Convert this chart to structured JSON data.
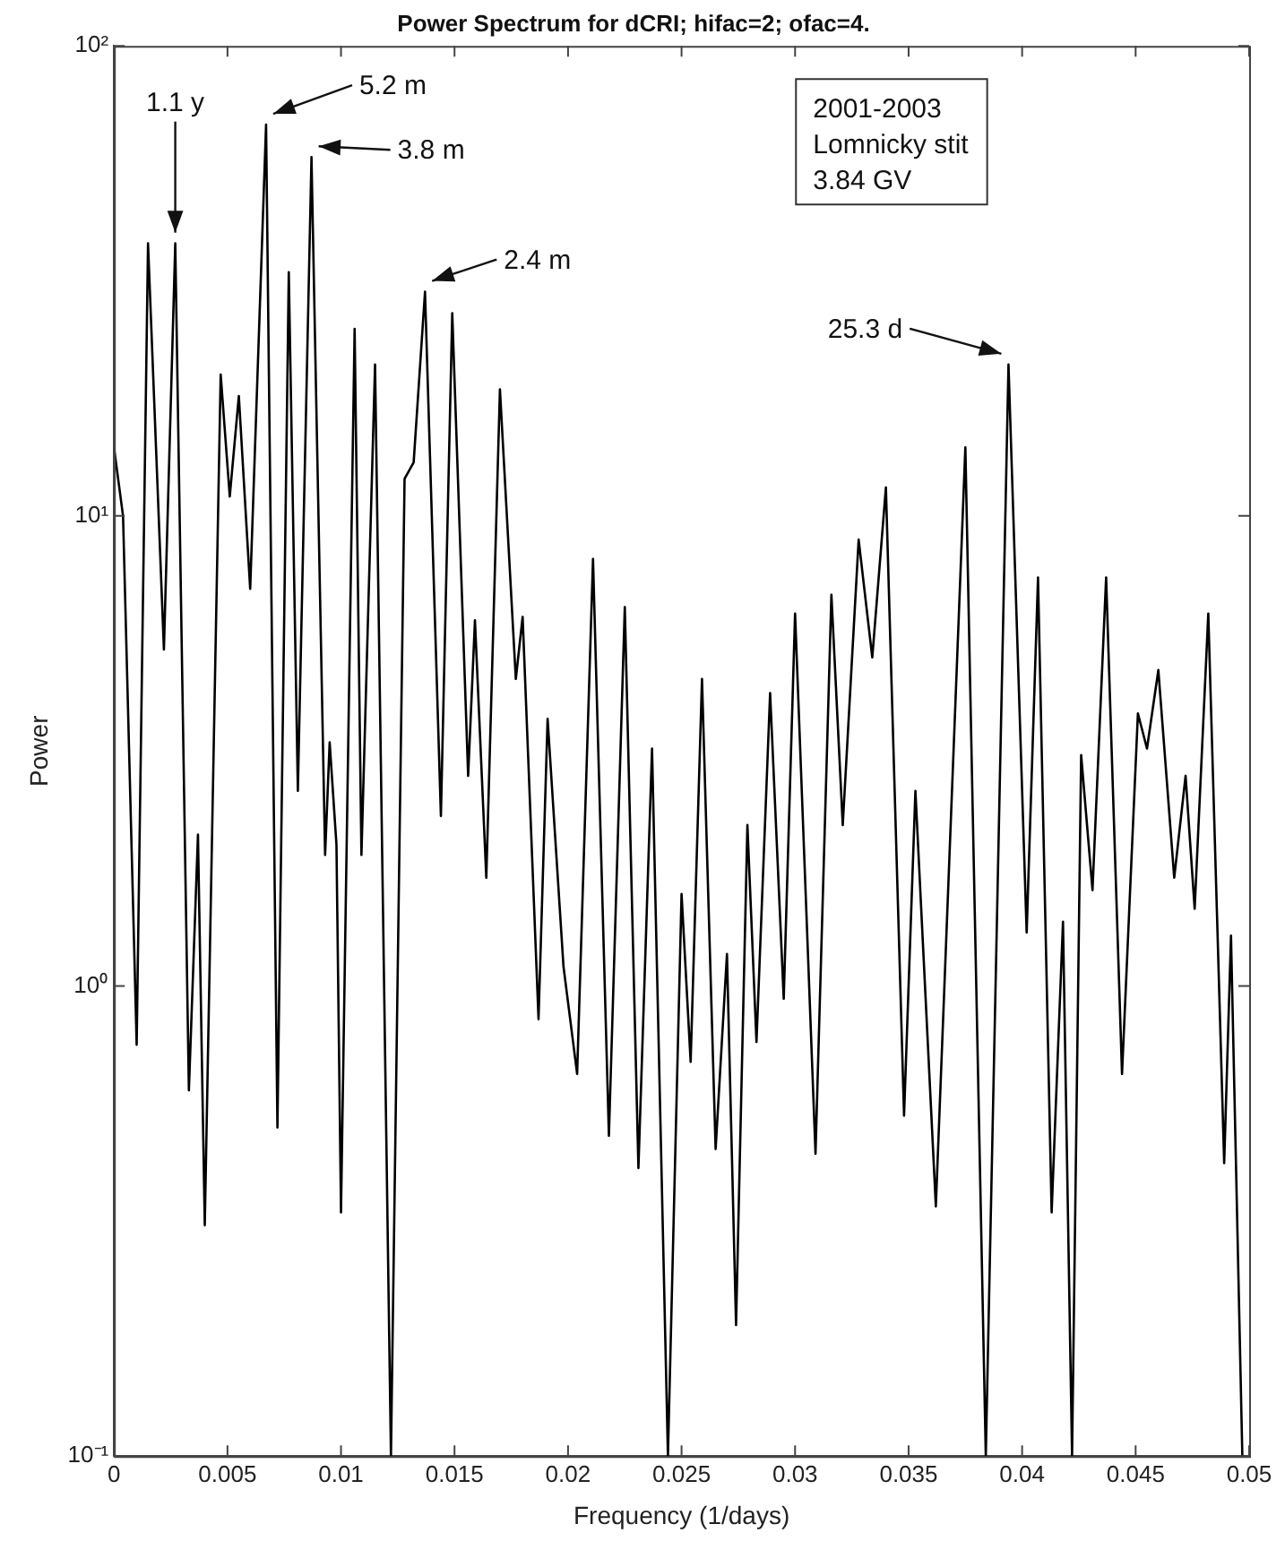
{
  "chart_data": {
    "type": "line",
    "title": "Power Spectrum for dCRI; hifac=2; ofac=4.",
    "xlabel": "Frequency (1/days)",
    "ylabel": "Power",
    "log": "y",
    "grid": false,
    "legend": false,
    "marker": "none",
    "line_style": "solid",
    "xlim": [
      0,
      0.05
    ],
    "xticks": [
      0,
      0.005,
      0.01,
      0.015,
      0.02,
      0.025,
      0.03,
      0.035,
      0.04,
      0.045,
      0.05
    ],
    "ylim": [
      0.1,
      100
    ],
    "yticks": [
      {
        "value": 0.1,
        "label": "10⁻¹"
      },
      {
        "value": 1,
        "label": "10⁰"
      },
      {
        "value": 10,
        "label": "10¹"
      },
      {
        "value": 100,
        "label": "10²"
      }
    ],
    "series": [
      {
        "color": "#000000",
        "x": [
          0,
          0.0004,
          0.001,
          0.0015,
          0.0022,
          0.0027,
          0.0033,
          0.0037,
          0.004,
          0.0047,
          0.0051,
          0.0055,
          0.006,
          0.0067,
          0.0072,
          0.0077,
          0.0081,
          0.0087,
          0.0093,
          0.0095,
          0.0098,
          0.01,
          0.0106,
          0.0109,
          0.0115,
          0.0122,
          0.0128,
          0.0132,
          0.0137,
          0.0144,
          0.0149,
          0.0156,
          0.0159,
          0.0164,
          0.017,
          0.0177,
          0.018,
          0.0187,
          0.0191,
          0.0198,
          0.0204,
          0.0211,
          0.0218,
          0.0225,
          0.0231,
          0.0237,
          0.0244,
          0.025,
          0.0254,
          0.0259,
          0.0265,
          0.027,
          0.0274,
          0.0279,
          0.0283,
          0.0289,
          0.0295,
          0.03,
          0.0309,
          0.0316,
          0.0321,
          0.0328,
          0.0334,
          0.034,
          0.0348,
          0.0353,
          0.0362,
          0.0375,
          0.0384,
          0.0394,
          0.0402,
          0.0407,
          0.0413,
          0.0418,
          0.0422,
          0.0426,
          0.0431,
          0.0437,
          0.0444,
          0.0451,
          0.0455,
          0.046,
          0.0467,
          0.0472,
          0.0476,
          0.0482,
          0.0489,
          0.0492,
          0.0497
        ],
        "values": [
          14,
          10,
          0.75,
          38,
          5.2,
          38,
          0.6,
          2.1,
          0.31,
          20,
          11,
          18,
          7,
          68,
          0.5,
          33,
          2.6,
          58,
          1.9,
          3.3,
          2.0,
          0.33,
          25,
          1.9,
          21,
          0.1,
          12,
          13,
          30,
          2.3,
          27,
          2.8,
          6,
          1.7,
          18.6,
          4.5,
          6.1,
          0.85,
          3.7,
          1.1,
          0.65,
          8.1,
          0.48,
          6.4,
          0.41,
          3.2,
          0.1,
          1.57,
          0.69,
          4.5,
          0.45,
          1.17,
          0.19,
          2.2,
          0.76,
          4.2,
          0.94,
          6.2,
          0.44,
          6.8,
          2.2,
          8.9,
          5,
          11.5,
          0.53,
          2.6,
          0.34,
          14,
          0.1,
          21,
          1.3,
          7.4,
          0.33,
          1.37,
          0.1,
          3.1,
          1.6,
          7.4,
          0.65,
          3.8,
          3.2,
          4.7,
          1.7,
          2.8,
          1.46,
          6.2,
          0.42,
          1.28,
          0.1
        ]
      }
    ],
    "annotations": [
      {
        "text": "1.1 y",
        "x": 0.0027,
        "y": 38
      },
      {
        "text": "5.2 m",
        "x": 0.0067,
        "y": 68
      },
      {
        "text": "3.8 m",
        "x": 0.0087,
        "y": 58
      },
      {
        "text": "2.4 m",
        "x": 0.0137,
        "y": 30
      },
      {
        "text": "25.3 d",
        "x": 0.0394,
        "y": 21
      },
      "2001-2003",
      "Lomnicky stit",
      "3.84 GV"
    ]
  }
}
